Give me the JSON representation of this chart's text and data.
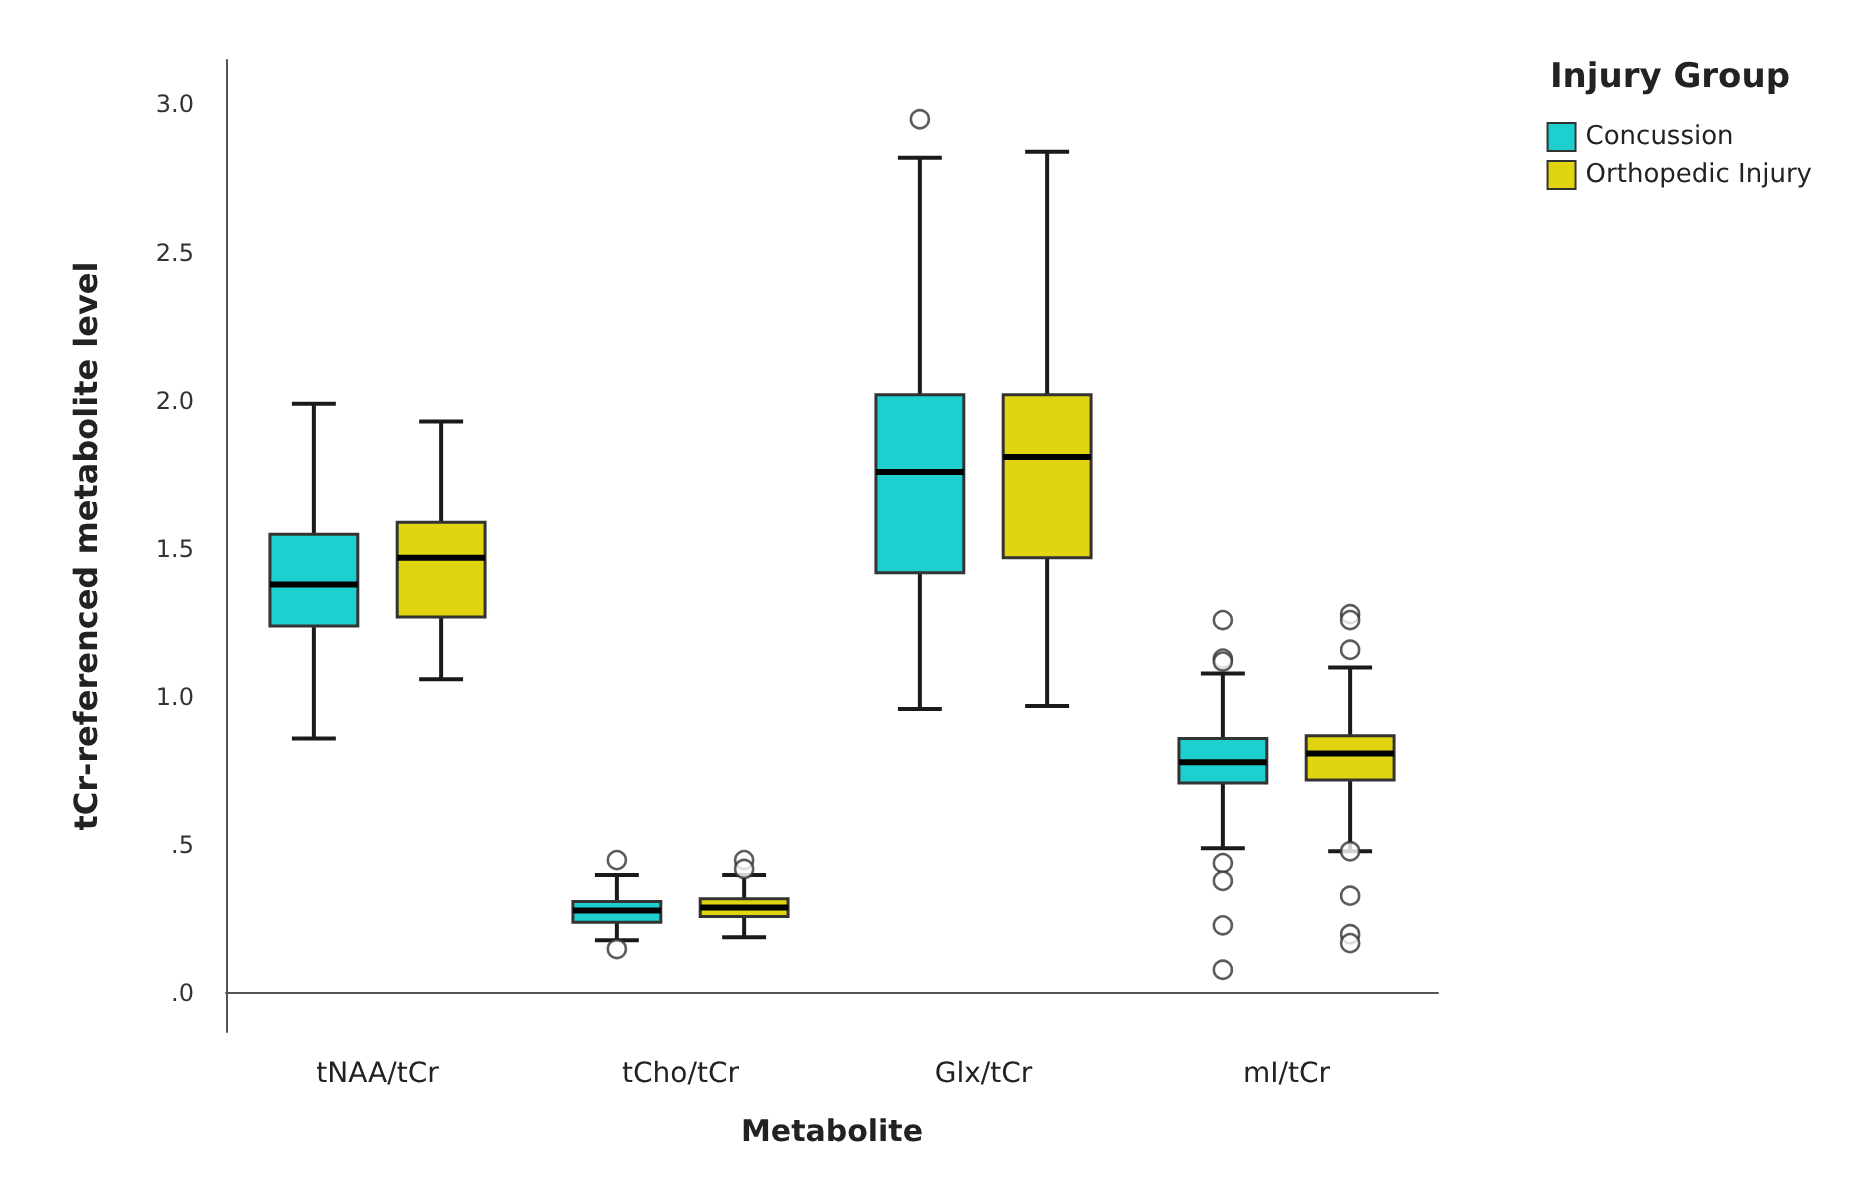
{
  "chart_data": {
    "type": "box",
    "xlabel": "Metabolite",
    "ylabel": "tCr-referenced metabolite level",
    "legend_title": "Injury Group",
    "legend": "top right",
    "grid": false,
    "categories": [
      "tNAA/tCr",
      "tCho/tCr",
      "Glx/tCr",
      "mI/tCr"
    ],
    "ylim": [
      -0.13,
      3.15
    ],
    "yticks": [
      {
        "value": 0,
        "label": ".0"
      },
      {
        "value": 0.5,
        "label": ".5"
      },
      {
        "value": 1,
        "label": "1.0"
      },
      {
        "value": 1.5,
        "label": "1.5"
      },
      {
        "value": 2,
        "label": "2.0"
      },
      {
        "value": 2.5,
        "label": "2.5"
      },
      {
        "value": 3,
        "label": "3.0"
      }
    ],
    "series": [
      {
        "name": "Concussion",
        "color": "#1ecfcf",
        "boxes": [
          {
            "low": 0.86,
            "q1": 1.24,
            "median": 1.38,
            "q3": 1.55,
            "high": 1.99
          },
          {
            "low": 0.18,
            "q1": 0.24,
            "median": 0.28,
            "q3": 0.31,
            "high": 0.4,
            "outliers": [
              0.45,
              0.15
            ]
          },
          {
            "low": 0.96,
            "q1": 1.42,
            "median": 1.76,
            "q3": 2.02,
            "high": 2.82,
            "outliers": [
              2.95
            ]
          },
          {
            "low": 0.49,
            "q1": 0.71,
            "median": 0.78,
            "q3": 0.86,
            "high": 1.08,
            "outliers": [
              1.26,
              1.13,
              1.12,
              0.44,
              0.38,
              0.23,
              0.08
            ]
          }
        ]
      },
      {
        "name": "Orthopedic Injury",
        "color": "#e0d510",
        "boxes": [
          {
            "low": 1.06,
            "q1": 1.27,
            "median": 1.47,
            "q3": 1.59,
            "high": 1.93
          },
          {
            "low": 0.19,
            "q1": 0.26,
            "median": 0.29,
            "q3": 0.32,
            "high": 0.4,
            "outliers": [
              0.45,
              0.42
            ]
          },
          {
            "low": 0.97,
            "q1": 1.47,
            "median": 1.81,
            "q3": 2.02,
            "high": 2.84
          },
          {
            "low": 0.48,
            "q1": 0.72,
            "median": 0.81,
            "q3": 0.87,
            "high": 1.1,
            "outliers": [
              1.28,
              1.26,
              1.16,
              0.48,
              0.33,
              0.2,
              0.17
            ]
          }
        ]
      }
    ]
  }
}
